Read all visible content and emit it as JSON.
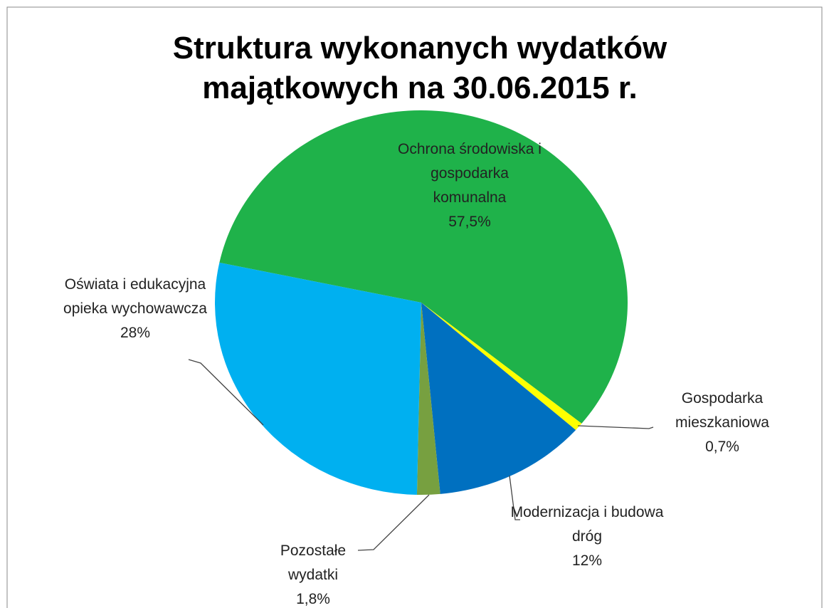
{
  "chart_data": {
    "type": "pie",
    "title": "Struktura wykonanych wydatków majątkowych na 30.06.2015 r.",
    "categories": [
      "Ochrona środowiska i gospodarka komunalna",
      "Gospodarka mieszkaniowa",
      "Modernizacja i budowa dróg",
      "Pozostałe wydatki",
      "Oświata i edukacyjna opieka wychowawcza"
    ],
    "values": [
      57.5,
      0.7,
      12,
      1.8,
      28
    ],
    "value_labels": [
      "57,5%",
      "0,7%",
      "12%",
      "1,8%",
      "28%"
    ],
    "colors": [
      "#1fb24a",
      "#ffff00",
      "#0070c0",
      "#77a040",
      "#00b0f0"
    ]
  }
}
